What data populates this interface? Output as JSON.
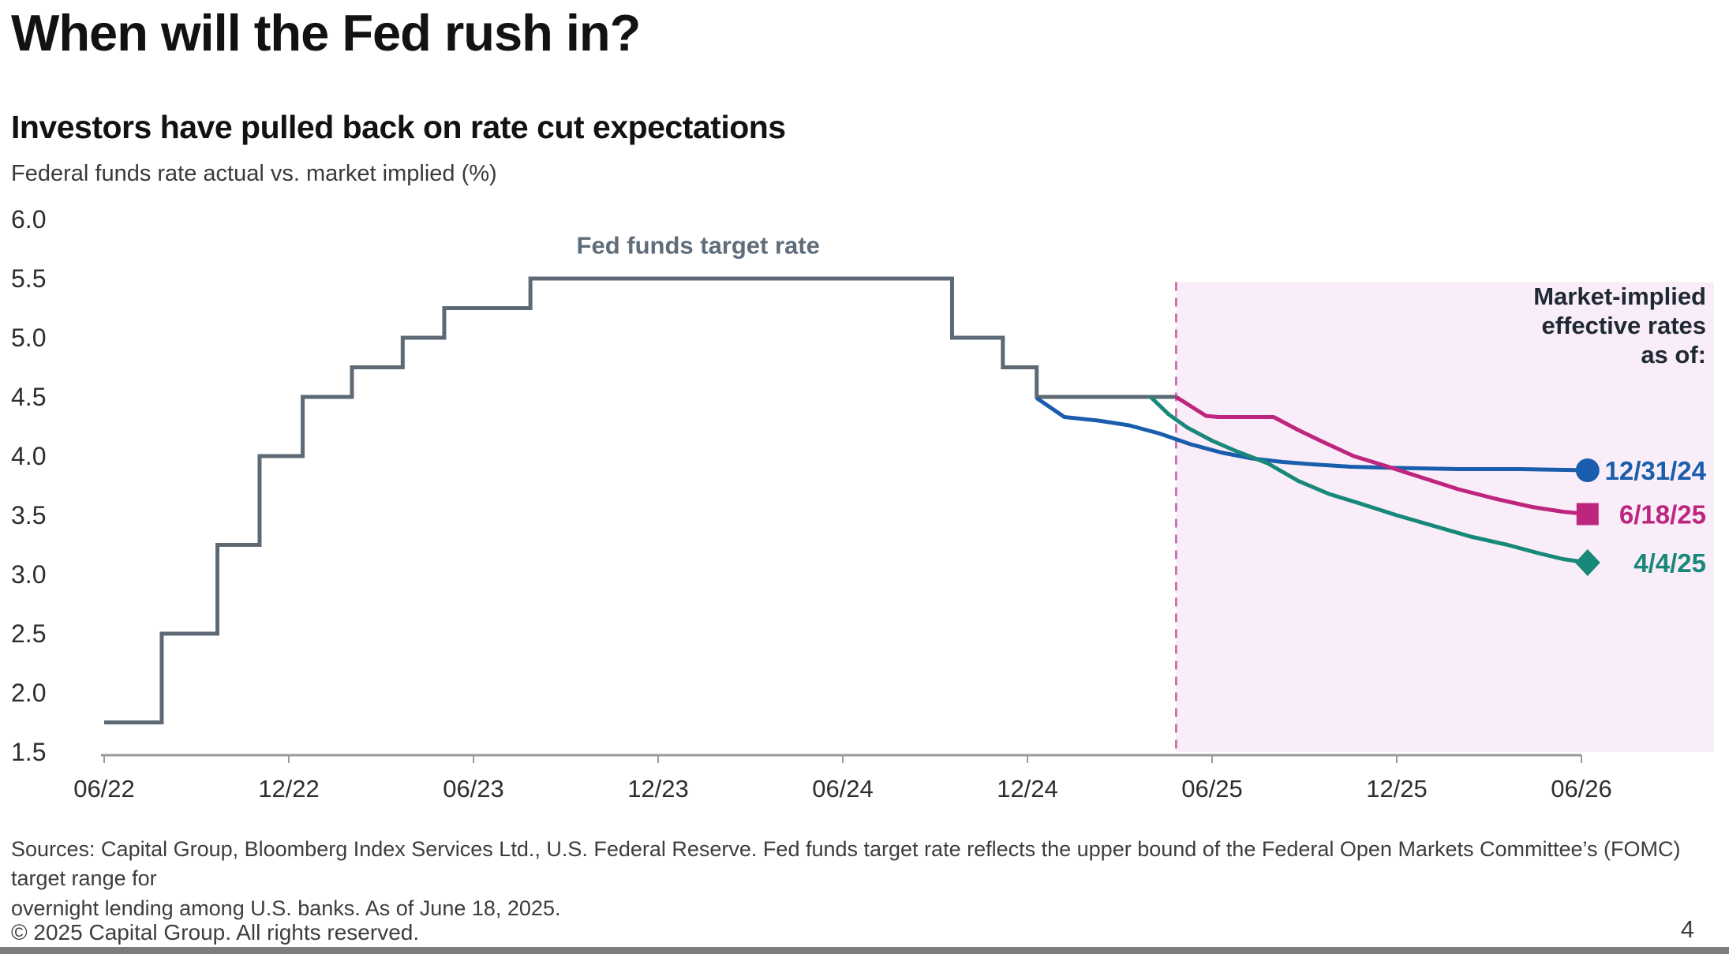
{
  "header": {
    "title": "When will the Fed rush in?",
    "subtitle": "Investors have pulled back on rate cut expectations",
    "axis_note": "Federal funds rate actual vs. market implied (%)"
  },
  "chart_data": {
    "type": "line",
    "title": "Federal funds rate actual vs. market implied (%)",
    "xlabel": "",
    "ylabel": "Federal funds rate (%)",
    "ylim": [
      1.5,
      6.0
    ],
    "grid": false,
    "legend_position": "right",
    "y_ticks": [
      {
        "v": 6.0,
        "label": "6.0"
      },
      {
        "v": 5.5,
        "label": "5.5"
      },
      {
        "v": 5.0,
        "label": "5.0"
      },
      {
        "v": 4.5,
        "label": "4.5"
      },
      {
        "v": 4.0,
        "label": "4.0"
      },
      {
        "v": 3.5,
        "label": "3.5"
      },
      {
        "v": 3.0,
        "label": "3.0"
      },
      {
        "v": 2.5,
        "label": "2.5"
      },
      {
        "v": 2.0,
        "label": "2.0"
      },
      {
        "v": 1.5,
        "label": "1.5"
      }
    ],
    "x_ticks": [
      {
        "t": 0,
        "label": "06/22"
      },
      {
        "t": 6,
        "label": "12/22"
      },
      {
        "t": 12,
        "label": "06/23"
      },
      {
        "t": 18,
        "label": "12/23"
      },
      {
        "t": 24,
        "label": "06/24"
      },
      {
        "t": 30,
        "label": "12/24"
      },
      {
        "t": 36,
        "label": "06/25"
      },
      {
        "t": 42,
        "label": "12/25"
      },
      {
        "t": 48,
        "label": "06/26"
      }
    ],
    "shaded_region": {
      "start_t": 34.83,
      "end_t": 52.3,
      "top_value": 5.47,
      "fill": "#f8edf8",
      "dashed_line_color": "#c6639e"
    },
    "annotations": {
      "step_label": {
        "text": "Fed funds target rate",
        "t": 19.3,
        "v": 5.71,
        "color": "#5f6d7a"
      },
      "legend_title_lines": [
        "Market-implied",
        "effective rates",
        "as of:"
      ],
      "legend_title_color": "#1e2933"
    },
    "series": [
      {
        "id": "fed-funds-target-rate",
        "name": "Fed funds target rate",
        "type": "step",
        "color": "#5d6974",
        "marker": "none",
        "end_t": 34.83,
        "points": [
          [
            0,
            1.75
          ],
          [
            1.87,
            2.5
          ],
          [
            3.68,
            3.25
          ],
          [
            5.05,
            4.0
          ],
          [
            6.45,
            4.5
          ],
          [
            8.05,
            4.75
          ],
          [
            9.7,
            5.0
          ],
          [
            11.05,
            5.25
          ],
          [
            13.85,
            5.5
          ],
          [
            27.55,
            5.0
          ],
          [
            29.2,
            4.75
          ],
          [
            30.3,
            4.5
          ]
        ]
      },
      {
        "id": "implied-12-31-24",
        "name": "12/31/24",
        "type": "line",
        "color": "#1a5dad",
        "marker": "circle",
        "points": [
          [
            30.3,
            4.49
          ],
          [
            31.2,
            4.33
          ],
          [
            32.3,
            4.3
          ],
          [
            33.3,
            4.26
          ],
          [
            34.3,
            4.19
          ],
          [
            35.3,
            4.1
          ],
          [
            36.3,
            4.03
          ],
          [
            37.3,
            3.98
          ],
          [
            38.3,
            3.95
          ],
          [
            39.3,
            3.93
          ],
          [
            40.5,
            3.91
          ],
          [
            42,
            3.9
          ],
          [
            44,
            3.89
          ],
          [
            46,
            3.89
          ],
          [
            48.2,
            3.88
          ]
        ]
      },
      {
        "id": "implied-4-4-25",
        "name": "4/4/25",
        "type": "line",
        "color": "#178879",
        "marker": "diamond",
        "points": [
          [
            34.0,
            4.5
          ],
          [
            34.6,
            4.35
          ],
          [
            35.2,
            4.24
          ],
          [
            36.0,
            4.13
          ],
          [
            36.8,
            4.04
          ],
          [
            37.8,
            3.94
          ],
          [
            38.8,
            3.79
          ],
          [
            39.8,
            3.68
          ],
          [
            40.8,
            3.6
          ],
          [
            42.0,
            3.5
          ],
          [
            43.2,
            3.41
          ],
          [
            44.4,
            3.32
          ],
          [
            45.6,
            3.25
          ],
          [
            46.6,
            3.18
          ],
          [
            47.4,
            3.13
          ],
          [
            48.2,
            3.1
          ]
        ]
      },
      {
        "id": "implied-6-18-25",
        "name": "6/18/25",
        "type": "line",
        "color": "#be257f",
        "marker": "square",
        "points": [
          [
            34.83,
            4.5
          ],
          [
            35.8,
            4.34
          ],
          [
            36.2,
            4.33
          ],
          [
            38.0,
            4.33
          ],
          [
            38.8,
            4.22
          ],
          [
            39.6,
            4.12
          ],
          [
            40.6,
            4.0
          ],
          [
            41.6,
            3.92
          ],
          [
            42.8,
            3.82
          ],
          [
            44.0,
            3.72
          ],
          [
            45.2,
            3.64
          ],
          [
            46.4,
            3.57
          ],
          [
            47.4,
            3.53
          ],
          [
            48.2,
            3.51
          ]
        ]
      }
    ]
  },
  "footer": {
    "sources_line1": "Sources: Capital Group, Bloomberg Index Services Ltd., U.S. Federal Reserve. Fed funds target rate reflects the upper bound of the Federal Open Markets Committee’s (FOMC) target range for",
    "sources_line2": "overnight lending among U.S. banks. As of June 18, 2025.",
    "copyright": "© 2025 Capital Group. All rights reserved.",
    "page_number": "4"
  }
}
